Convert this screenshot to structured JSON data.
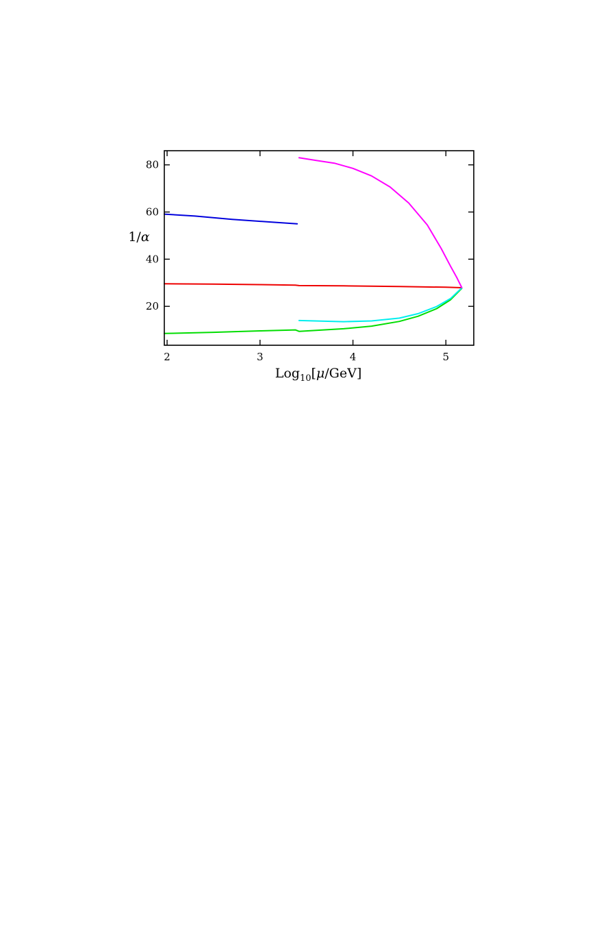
{
  "chart_data": {
    "type": "line",
    "title": "",
    "xlabel": {
      "prefix": "Log",
      "sub": "10",
      "bracket_open": "[",
      "var": "μ",
      "unit": "/GeV]"
    },
    "ylabel": {
      "num": "1/",
      "var": "α"
    },
    "xlim": [
      1.97,
      5.3
    ],
    "ylim": [
      3.5,
      86
    ],
    "xticks": [
      2,
      3,
      4,
      5
    ],
    "xtick_labels": [
      "2",
      "3",
      "4",
      "5"
    ],
    "yticks": [
      20,
      40,
      60,
      80
    ],
    "ytick_labels": [
      "20",
      "40",
      "60",
      "80"
    ],
    "grid": false,
    "legend": "none",
    "series": [
      {
        "color": "#0000dd",
        "points": [
          [
            1.97,
            59.1
          ],
          [
            2.3,
            58.3
          ],
          [
            2.7,
            56.9
          ],
          [
            3.1,
            55.8
          ],
          [
            3.4,
            55.0
          ]
        ]
      },
      {
        "color": "#ee0000",
        "points": [
          [
            1.97,
            29.6
          ],
          [
            2.5,
            29.4
          ],
          [
            3.0,
            29.2
          ],
          [
            3.38,
            29.0
          ],
          [
            3.42,
            28.8
          ],
          [
            3.9,
            28.7
          ],
          [
            4.5,
            28.4
          ],
          [
            5.0,
            28.1
          ],
          [
            5.17,
            27.9
          ]
        ]
      },
      {
        "color": "#00dd00",
        "points": [
          [
            1.97,
            8.5
          ],
          [
            2.5,
            9.0
          ],
          [
            3.0,
            9.6
          ],
          [
            3.38,
            10.0
          ],
          [
            3.42,
            9.4
          ],
          [
            3.9,
            10.5
          ],
          [
            4.2,
            11.6
          ],
          [
            4.5,
            13.6
          ],
          [
            4.7,
            15.8
          ],
          [
            4.9,
            19.0
          ],
          [
            5.05,
            22.8
          ],
          [
            5.17,
            27.6
          ]
        ]
      },
      {
        "color": "#00eeee",
        "points": [
          [
            3.42,
            14.0
          ],
          [
            3.9,
            13.5
          ],
          [
            4.2,
            13.8
          ],
          [
            4.5,
            15.0
          ],
          [
            4.7,
            16.9
          ],
          [
            4.9,
            19.9
          ],
          [
            5.05,
            23.3
          ],
          [
            5.17,
            27.8
          ]
        ]
      },
      {
        "color": "#ff00ff",
        "points": [
          [
            3.42,
            83.0
          ],
          [
            3.6,
            81.9
          ],
          [
            3.8,
            80.7
          ],
          [
            4.0,
            78.5
          ],
          [
            4.2,
            75.3
          ],
          [
            4.4,
            70.6
          ],
          [
            4.6,
            63.8
          ],
          [
            4.8,
            54.5
          ],
          [
            4.95,
            44.5
          ],
          [
            5.05,
            37.0
          ],
          [
            5.12,
            32.0
          ],
          [
            5.17,
            28.0
          ]
        ]
      }
    ]
  }
}
